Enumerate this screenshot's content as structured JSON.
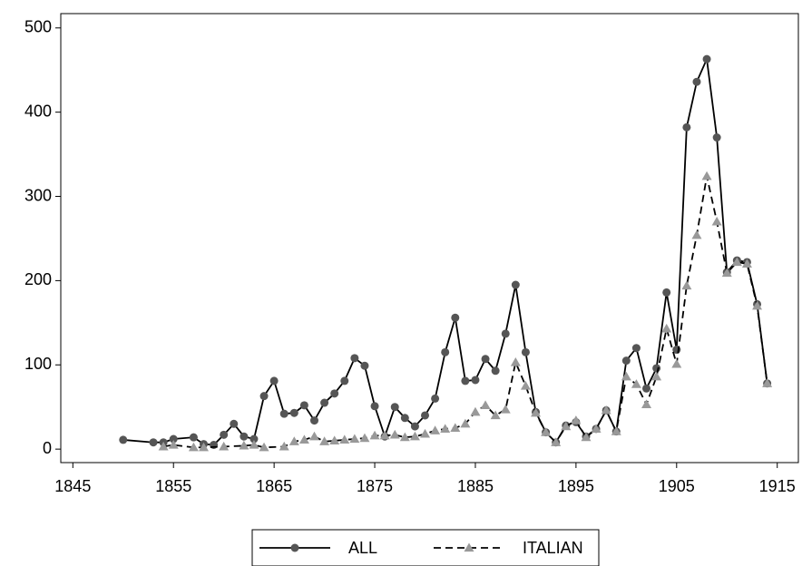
{
  "chart_data": {
    "type": "line",
    "xlim": [
      1843.8,
      1917.1
    ],
    "ylim": [
      -16,
      517
    ],
    "xticks": [
      1845,
      1855,
      1865,
      1875,
      1885,
      1895,
      1905,
      1915
    ],
    "yticks": [
      0,
      100,
      200,
      300,
      400,
      500
    ],
    "grid": false,
    "legend": "bottom",
    "series": [
      {
        "name": "ALL",
        "color": "#000000",
        "marker": "circle",
        "marker_color": "#555555",
        "dashed": false,
        "x": [
          1850,
          1853,
          1854,
          1855,
          1857,
          1858,
          1859,
          1860,
          1861,
          1862,
          1863,
          1864,
          1865,
          1866,
          1867,
          1868,
          1869,
          1870,
          1871,
          1872,
          1873,
          1874,
          1875,
          1876,
          1877,
          1878,
          1879,
          1880,
          1881,
          1882,
          1883,
          1884,
          1885,
          1886,
          1887,
          1888,
          1889,
          1890,
          1891,
          1892,
          1893,
          1894,
          1895,
          1896,
          1897,
          1898,
          1899,
          1900,
          1901,
          1902,
          1903,
          1904,
          1905,
          1906,
          1907,
          1908,
          1909,
          1910,
          1911,
          1912,
          1913,
          1914
        ],
        "values": [
          11,
          8,
          8,
          12,
          14,
          6,
          5,
          17,
          30,
          15,
          12,
          63,
          81,
          42,
          43,
          52,
          34,
          55,
          66,
          81,
          108,
          99,
          51,
          15,
          50,
          37,
          27,
          40,
          60,
          115,
          156,
          81,
          82,
          107,
          93,
          137,
          195,
          115,
          44,
          20,
          8,
          28,
          32,
          15,
          24,
          46,
          21,
          105,
          120,
          72,
          96,
          186,
          118,
          382,
          436,
          463,
          370,
          210,
          224,
          222,
          172,
          78
        ]
      },
      {
        "name": "ITALIAN",
        "color": "#000000",
        "marker": "triangle",
        "marker_color": "#999999",
        "dashed": true,
        "x": [
          1854,
          1855,
          1857,
          1858,
          1860,
          1862,
          1863,
          1864,
          1866,
          1867,
          1868,
          1869,
          1870,
          1871,
          1872,
          1873,
          1874,
          1875,
          1876,
          1877,
          1878,
          1879,
          1880,
          1881,
          1882,
          1883,
          1884,
          1885,
          1886,
          1887,
          1888,
          1889,
          1890,
          1891,
          1892,
          1893,
          1894,
          1895,
          1896,
          1897,
          1898,
          1899,
          1900,
          1901,
          1902,
          1903,
          1904,
          1905,
          1906,
          1907,
          1908,
          1909,
          1910,
          1911,
          1912,
          1913,
          1914
        ],
        "values": [
          3,
          5,
          2,
          2,
          3,
          4,
          5,
          2,
          3,
          9,
          11,
          15,
          9,
          10,
          11,
          12,
          13,
          16,
          16,
          17,
          14,
          15,
          18,
          22,
          24,
          25,
          30,
          44,
          52,
          40,
          47,
          103,
          75,
          43,
          20,
          8,
          27,
          34,
          14,
          24,
          46,
          21,
          86,
          77,
          53,
          86,
          143,
          101,
          194,
          254,
          324,
          270,
          209,
          222,
          220,
          170,
          78
        ]
      }
    ]
  }
}
